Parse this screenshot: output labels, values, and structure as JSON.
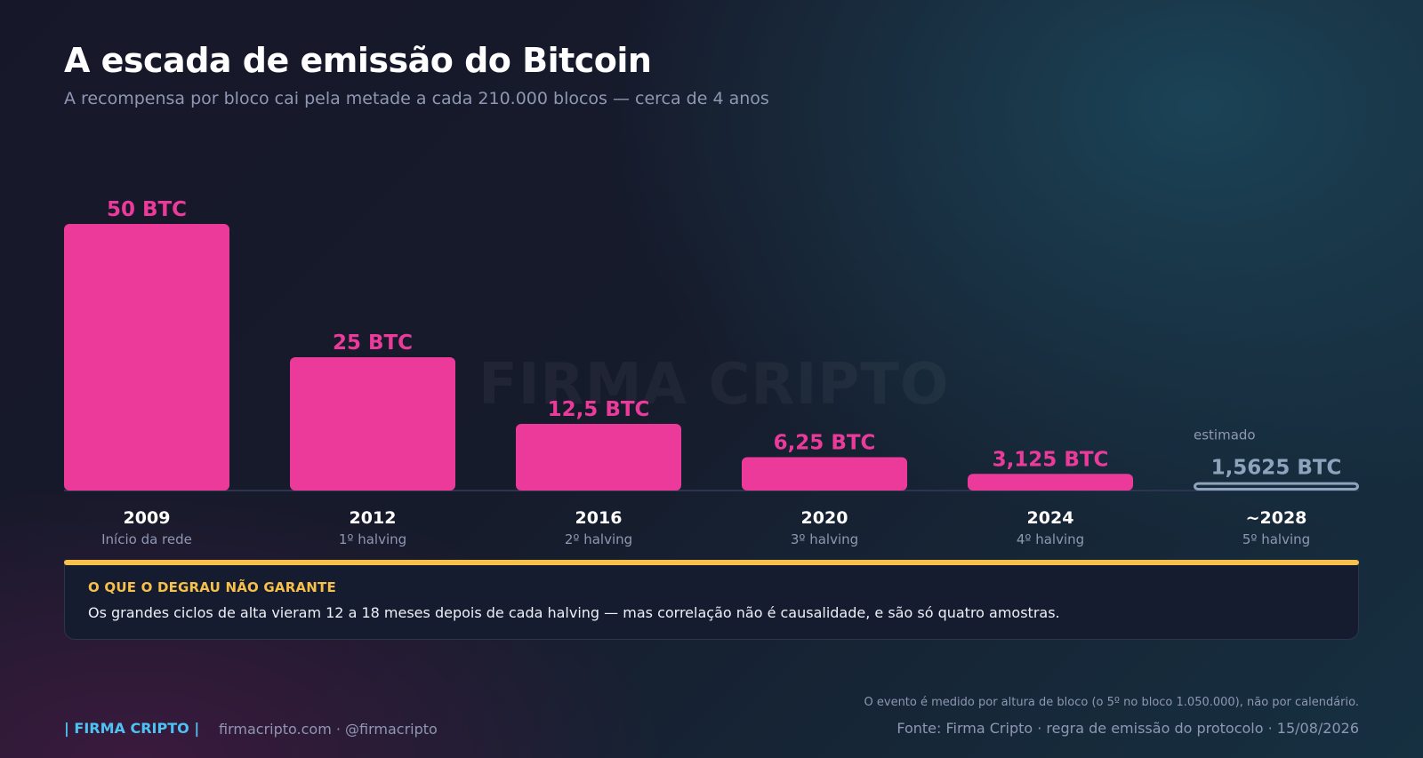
{
  "header": {
    "title": "A escada de emissão do Bitcoin",
    "subtitle": "A recompensa por bloco cai pela metade a cada 210.000 blocos — cerca de 4 anos"
  },
  "watermark": "FIRMA CRIPTO",
  "chart_data": {
    "type": "bar",
    "categories": [
      "2009",
      "2012",
      "2016",
      "2020",
      "2024",
      "~2028"
    ],
    "sublabels": [
      "Início da rede",
      "1º halving",
      "2º halving",
      "3º halving",
      "4º halving",
      "5º halving"
    ],
    "values": [
      50,
      25,
      12.5,
      6.25,
      3.125,
      1.5625
    ],
    "value_labels": [
      "50 BTC",
      "25 BTC",
      "12,5 BTC",
      "6,25 BTC",
      "3,125 BTC",
      "1,5625 BTC"
    ],
    "estimated": [
      false,
      false,
      false,
      false,
      false,
      true
    ],
    "estimated_label": "estimado",
    "ylim": [
      0,
      50
    ],
    "grid": false,
    "colors": {
      "bar": "#ec3a9b",
      "estimated": "#8ea4bd"
    }
  },
  "note": {
    "title": "O QUE O DEGRAU NÃO GARANTE",
    "text": "Os grandes ciclos de alta vieram 12 a 18 meses depois de cada halving — mas correlação não é causalidade, e são só quatro amostras."
  },
  "footer": {
    "brand": "| FIRMA CRIPTO |",
    "links": "firmacripto.com  ·  @firmacripto",
    "footnote": "O evento é medido por altura de bloco (o 5º no bloco 1.050.000), não por calendário.",
    "source": "Fonte: Firma Cripto · regra de emissão do protocolo  ·  15/08/2026"
  },
  "colors": {
    "accent": "#ec3a9b",
    "note_accent": "#f7c04a",
    "brand": "#4cc3f2"
  }
}
